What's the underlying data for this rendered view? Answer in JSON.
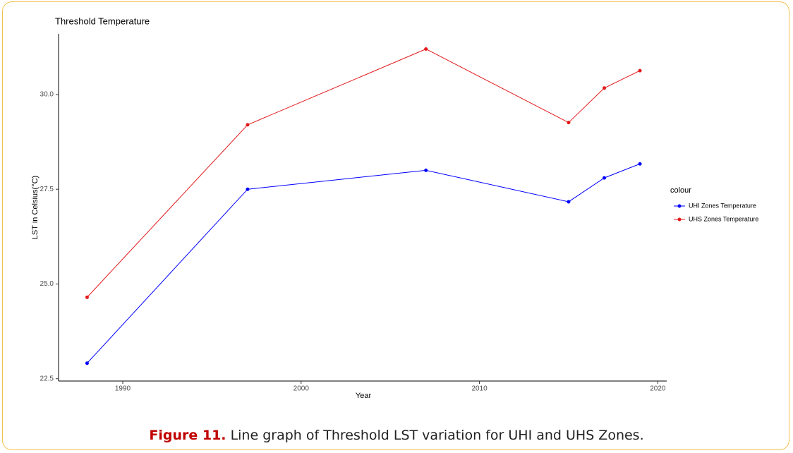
{
  "chart_data": {
    "type": "line",
    "title": "Threshold Temperature",
    "x_label": "Year",
    "y_label": "LST in Celsius(°C)",
    "legend_title": "colour",
    "x": [
      1988,
      1997,
      2007,
      2015,
      2017,
      2019
    ],
    "series": [
      {
        "name": "UHI Zones Temperature",
        "color": "#0000ff",
        "values": [
          22.91,
          27.5,
          28.0,
          27.17,
          27.8,
          28.17
        ]
      },
      {
        "name": "UHS Zones Temperature",
        "color": "#e31a1c",
        "values": [
          24.65,
          29.2,
          31.2,
          29.26,
          30.17,
          30.63
        ]
      }
    ],
    "xlim": [
      1986.4,
      2020.5
    ],
    "xticks": [
      1990,
      2000,
      2010,
      2020
    ],
    "ylim": [
      22.44,
      31.6
    ],
    "yticks": [
      22.5,
      {
        "value": 25,
        "label": "25.0"
      },
      27.5,
      {
        "value": 30,
        "label": "30.0"
      }
    ],
    "grid": false,
    "legend_position": "right"
  },
  "caption": {
    "label": "Figure 11.",
    "text": "Line graph of Threshold LST variation for UHI and UHS Zones."
  }
}
